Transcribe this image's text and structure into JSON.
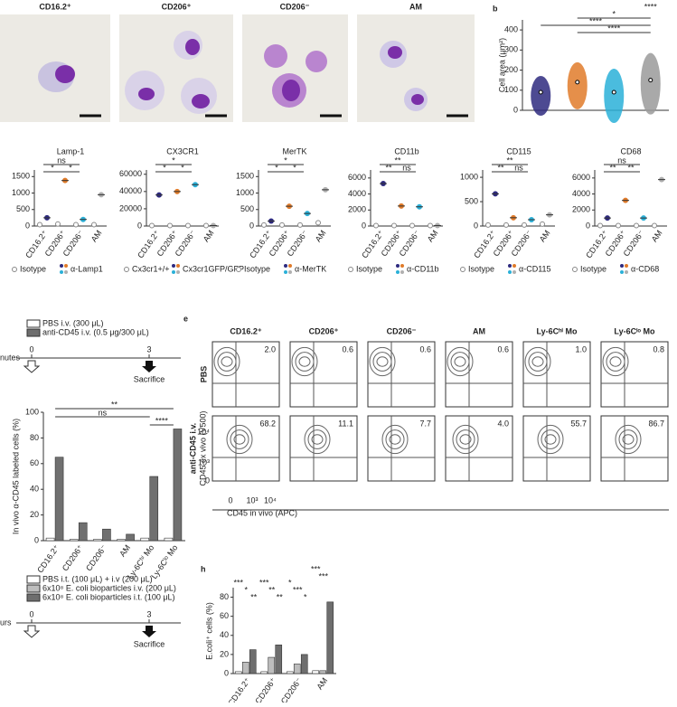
{
  "panel_a": {
    "titles": [
      "CD16.2⁺",
      "CD206⁺",
      "CD206⁻",
      "AM"
    ]
  },
  "panel_b": {
    "label": "b",
    "y_label": "Cell area (μm²)",
    "ylim": [
      0,
      450
    ],
    "yticks": [
      0,
      100,
      200,
      300,
      400
    ],
    "values": [
      90,
      140,
      90,
      150
    ],
    "colors": [
      "#2e2a7f",
      "#e07b2a",
      "#2ab0d8",
      "#9a9a9a"
    ],
    "annotations": [
      "****",
      "*",
      "****",
      "****"
    ]
  },
  "staining": {
    "categories": [
      "CD16.2⁺",
      "CD206⁺",
      "CD206⁻",
      "AM"
    ],
    "colors": [
      "#2e2a7f",
      "#e07b2a",
      "#2ab0d8",
      "#b0b0b0"
    ],
    "panels": [
      {
        "title": "Lamp-1",
        "ylim": [
          0,
          1700
        ],
        "yticks": [
          0,
          500,
          1000,
          1500
        ],
        "isotype_values": [
          40,
          60,
          40,
          40
        ],
        "values": [
          250,
          1380,
          200,
          950
        ],
        "legend": [
          "Isotype",
          "α-Lamp1"
        ],
        "annotations": [
          "ns",
          "*",
          "*"
        ]
      },
      {
        "title": "CX3CR1",
        "ylim": [
          0,
          65000
        ],
        "yticks": [
          0,
          20000,
          40000,
          60000
        ],
        "isotype_values": [
          500,
          500,
          500,
          500
        ],
        "values": [
          36000,
          40000,
          48000,
          500
        ],
        "legend": [
          "Cx3cr1+/+",
          "Cx3cr1GFP/GFP"
        ],
        "annotations": [
          "*",
          "*",
          "*"
        ]
      },
      {
        "title": "MerTK",
        "ylim": [
          0,
          1700
        ],
        "yticks": [
          0,
          500,
          1000,
          1500
        ],
        "isotype_values": [
          30,
          30,
          30,
          100
        ],
        "values": [
          150,
          600,
          380,
          1100
        ],
        "legend": [
          "Isotype",
          "α-MerTK"
        ],
        "annotations": [
          "*",
          "*",
          "*"
        ]
      },
      {
        "title": "CD11b",
        "ylim": [
          0,
          7000
        ],
        "yticks": [
          0,
          2000,
          4000,
          6000
        ],
        "isotype_values": [
          50,
          50,
          50,
          50
        ],
        "values": [
          5300,
          2500,
          2400,
          50
        ],
        "legend": [
          "Isotype",
          "α-CD11b"
        ],
        "annotations": [
          "**",
          "**",
          "ns"
        ]
      },
      {
        "title": "CD115",
        "ylim": [
          0,
          1150
        ],
        "yticks": [
          0,
          500,
          1000
        ],
        "isotype_values": [
          20,
          20,
          20,
          40
        ],
        "values": [
          660,
          170,
          130,
          230
        ],
        "legend": [
          "Isotype",
          "α-CD115"
        ],
        "annotations": [
          "**",
          "**",
          "ns"
        ]
      },
      {
        "title": "CD68",
        "ylim": [
          0,
          7000
        ],
        "yticks": [
          0,
          2000,
          4000,
          6000
        ],
        "isotype_values": [
          50,
          50,
          50,
          50
        ],
        "values": [
          1000,
          3200,
          1000,
          5800
        ],
        "legend": [
          "Isotype",
          "α-CD68"
        ],
        "annotations": [
          "ns",
          "**",
          "**"
        ]
      }
    ]
  },
  "panel_d": {
    "protocol": {
      "legend": [
        "PBS i.v. (300 μL)",
        "anti-CD45 i.v. (0.5 μg/300 μL)"
      ],
      "axis_unit": "nutes",
      "start": "0",
      "end": "3",
      "event": "Sacrifice"
    },
    "y_label": "In vivo α-CD45 labeled cells (%)",
    "ylim": [
      0,
      100
    ],
    "yticks": [
      0,
      20,
      40,
      60,
      80,
      100
    ],
    "categories": [
      "CD16.2⁺",
      "CD206⁺",
      "CD206⁻",
      "AM",
      "Ly-6Cʰⁱ Mo",
      "Ly-6Cˡᵒ Mo"
    ],
    "category_colors": [
      "#2e2a7f",
      "#e07b2a",
      "#2ab0d8",
      "#b0b0b0",
      "#8b8b3a",
      "#c8c8a0"
    ],
    "series": [
      {
        "color": "#ffffff",
        "values": [
          2,
          1,
          1,
          1,
          2,
          2
        ]
      },
      {
        "color": "#707070",
        "values": [
          65,
          14,
          9,
          5,
          50,
          87
        ]
      }
    ],
    "annotations": [
      "**",
      "ns",
      "****"
    ]
  },
  "panel_e": {
    "label": "e",
    "columns": [
      "CD16.2⁺",
      "CD206⁺",
      "CD206⁻",
      "AM",
      "Ly-6Cʰⁱ Mo",
      "Ly-6Cˡᵒ Mo"
    ],
    "rows": [
      "PBS",
      "anti-CD45 i.v."
    ],
    "percentages": [
      [
        "2.0",
        "0.6",
        "0.6",
        "0.6",
        "1.0",
        "0.8"
      ],
      [
        "68.2",
        "11.1",
        "7.7",
        "4.0",
        "55.7",
        "86.7"
      ]
    ],
    "x_label": "CD45 in vivo (APC)",
    "y_label": "CD45 ex vivo (V500)",
    "ticks": [
      "0",
      "10³",
      "10⁴"
    ]
  },
  "panel_g": {
    "protocol": {
      "legend": [
        "PBS i.t. (100 μL) + i.v (200 μL)",
        "6x10⁸ E. coli bioparticles i.v. (200 μL)",
        "6x10⁸ E. coli bioparticles i.t. (100 μL)"
      ],
      "axis_unit": "urs",
      "start": "0",
      "end": "3",
      "event": "Sacrifice"
    }
  },
  "panel_h": {
    "label": "h",
    "y_label": "E.coli⁺ cells (%)",
    "ylim": [
      0,
      90
    ],
    "yticks": [
      0,
      20,
      40,
      60,
      80
    ],
    "categories": [
      "CD16.2⁺",
      "CD206⁺",
      "CD206⁻",
      "AM"
    ],
    "series": [
      {
        "color": "#ffffff",
        "values": [
          2,
          2,
          2,
          3
        ]
      },
      {
        "color": "#bdbdbd",
        "values": [
          12,
          17,
          10,
          3
        ]
      },
      {
        "color": "#6e6e6e",
        "values": [
          25,
          30,
          20,
          75
        ]
      }
    ],
    "annotations": [
      "***",
      "*",
      "**",
      "***",
      "**",
      "**",
      "*",
      "***",
      "*",
      "***",
      "***"
    ]
  }
}
